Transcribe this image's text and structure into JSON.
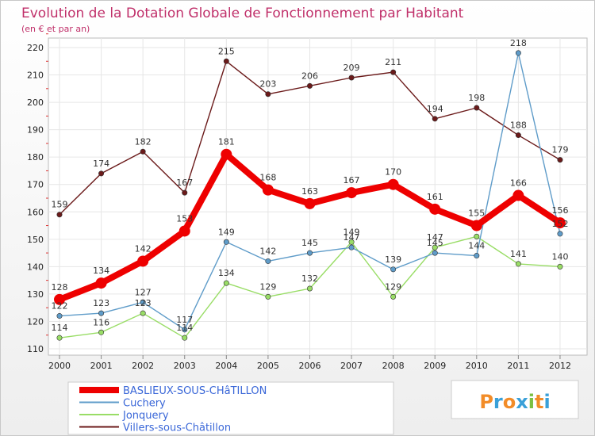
{
  "chart_data": {
    "type": "line",
    "title": "Evolution de la Dotation Globale de Fonctionnement par Habitant",
    "subtitle": "(en € et par an)",
    "x": [
      "2000",
      "2001",
      "2002",
      "2003",
      "2004",
      "2005",
      "2006",
      "2007",
      "2008",
      "2009",
      "2010",
      "2011",
      "2012"
    ],
    "ylim": [
      110,
      220
    ],
    "yticks": [
      110,
      120,
      130,
      140,
      150,
      160,
      170,
      180,
      190,
      200,
      210,
      220
    ],
    "grid": true,
    "legend_placement": "bottom",
    "series": [
      {
        "name": "Villers-sous-Châtillon",
        "color": "#6b1a1a",
        "width": 1.4,
        "marker": 3.2,
        "values": [
          159,
          174,
          182,
          167,
          215,
          203,
          206,
          209,
          211,
          194,
          198,
          188,
          179
        ]
      },
      {
        "name": "Jonquery",
        "color": "#99dd66",
        "width": 1.4,
        "marker": 3.2,
        "values": [
          114,
          116,
          123,
          114,
          134,
          129,
          132,
          149,
          129,
          147,
          151,
          141,
          140
        ],
        "labels": [
          114,
          116,
          123,
          114,
          134,
          129,
          132,
          149,
          129,
          147,
          null,
          141,
          140
        ]
      },
      {
        "name": "Cuchery",
        "color": "#5f9cc9",
        "width": 1.4,
        "marker": 3.2,
        "values": [
          122,
          123,
          127,
          117,
          149,
          142,
          145,
          147,
          139,
          145,
          144,
          218,
          152
        ],
        "labels": [
          122,
          123,
          127,
          117,
          149,
          142,
          145,
          147,
          139,
          145,
          144,
          218,
          152
        ]
      },
      {
        "name": "BASLIEUX-SOUS-CHâTILLON",
        "color": "#ee0000",
        "width": 8,
        "marker": 7,
        "values": [
          128,
          134,
          142,
          153,
          181,
          168,
          163,
          167,
          170,
          161,
          155,
          166,
          156
        ]
      }
    ]
  },
  "brand": {
    "logo_text": "Proxiti"
  }
}
